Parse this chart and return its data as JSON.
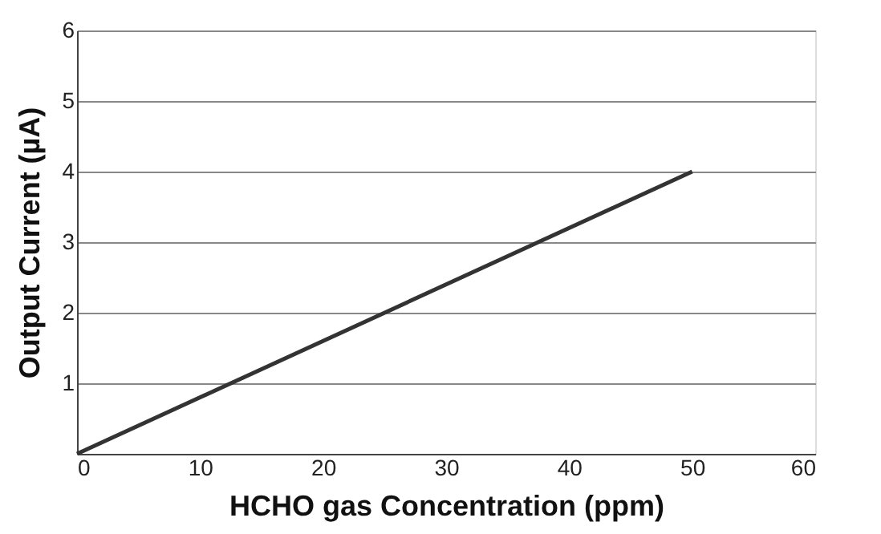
{
  "chart_data": {
    "type": "line",
    "xlabel": "HCHO gas Concentration (ppm)",
    "ylabel": "Output Current (µA)",
    "x": [
      0,
      50
    ],
    "series": [
      {
        "color": "#333333",
        "values": [
          0,
          4
        ]
      }
    ],
    "xlim": [
      0,
      60
    ],
    "xticks": [
      0,
      10,
      20,
      30,
      40,
      50,
      60
    ],
    "ylim": [
      0,
      6
    ],
    "yticks": [
      {
        "value": 0,
        "label": null
      },
      1,
      2,
      3,
      4,
      5,
      6
    ],
    "grid": "y",
    "marker": "none",
    "line_style": "solid"
  }
}
